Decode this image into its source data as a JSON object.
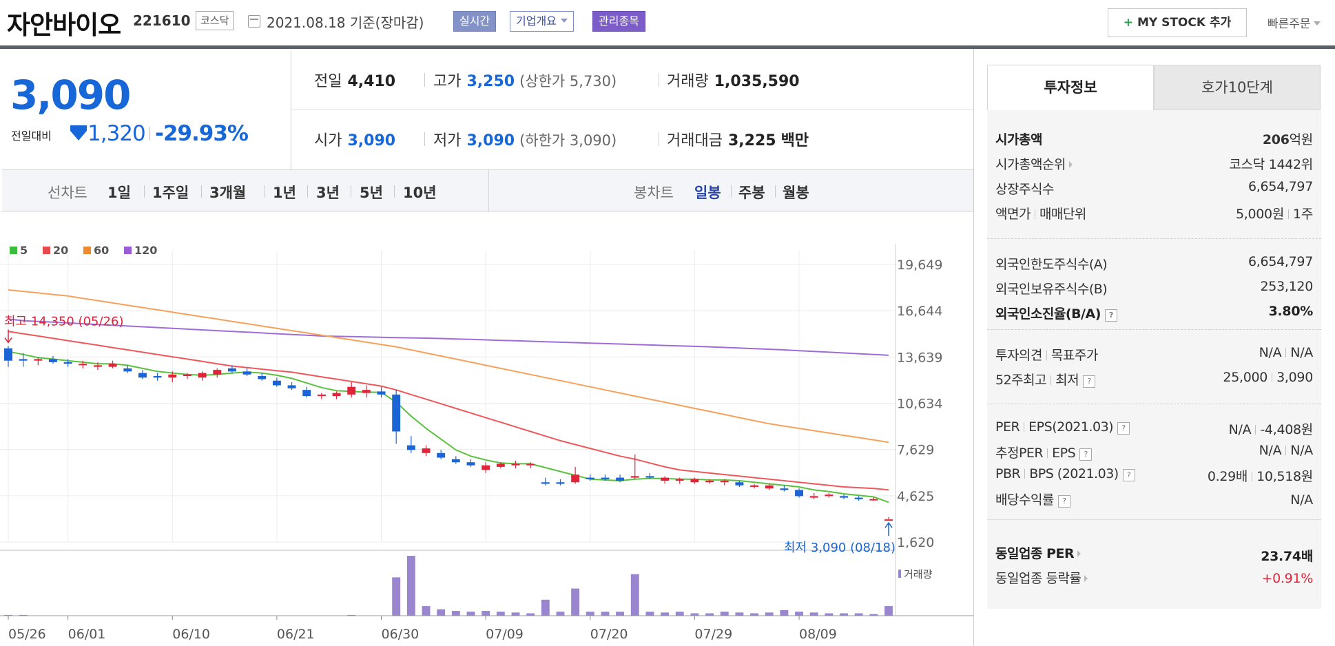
{
  "header": {
    "name": "자안바이오",
    "code": "221610",
    "market": "코스닥",
    "date": "2021.08.18 기준(장마감)",
    "badge_realtime": "실시간",
    "badge_company": "기업개요",
    "badge_managed": "관리종목",
    "mystock": "MY STOCK 추가",
    "mystock_plus": "+",
    "quick_order": "빠른주문"
  },
  "price": {
    "current": "3,090",
    "change_label": "전일대비",
    "change": "1,320",
    "change_pct": "-29.93%"
  },
  "quote_grid": {
    "prev_close": {
      "label": "전일",
      "value": "4,410"
    },
    "high": {
      "label": "고가",
      "value": "3,250",
      "limit": "(상한가 5,730)"
    },
    "volume": {
      "label": "거래량",
      "value": "1,035,590"
    },
    "open": {
      "label": "시가",
      "value": "3,090"
    },
    "low": {
      "label": "저가",
      "value": "3,090",
      "limit": "(하한가 3,090)"
    },
    "amount": {
      "label": "거래대금",
      "value": "3,225",
      "unit": "백만"
    }
  },
  "tabs": {
    "line_label": "선차트",
    "line_items": [
      "1일",
      "1주일",
      "3개월",
      "1년",
      "3년",
      "5년",
      "10년"
    ],
    "candle_label": "봉차트",
    "candle_items": [
      "일봉",
      "주봉",
      "월봉"
    ],
    "selected_candle": "일봉"
  },
  "colors": {
    "up": "#e0253a",
    "down": "#1a64d6",
    "ma5": "#59c23d",
    "ma20": "#f0575b",
    "ma60": "#f7a15a",
    "ma120": "#9d6cd6",
    "volume": "#9a86cf"
  },
  "chart_data": {
    "type": "candlestick",
    "title": "",
    "legend": [
      {
        "label": "5",
        "color": "#3bbd3b"
      },
      {
        "label": "20",
        "color": "#e8494f"
      },
      {
        "label": "60",
        "color": "#f08a2e"
      },
      {
        "label": "120",
        "color": "#9a5cd6"
      }
    ],
    "y_ticks": [
      1620,
      4625,
      7629,
      10634,
      13639,
      16644,
      19649
    ],
    "y_tick_labels": [
      "1,620",
      "4,625",
      "7,629",
      "10,634",
      "13,639",
      "16,644",
      "19,649"
    ],
    "ylim": [
      1620,
      19649
    ],
    "x_ticks": [
      {
        "label": "05/26",
        "index": 0
      },
      {
        "label": "06/01",
        "index": 4
      },
      {
        "label": "06/10",
        "index": 11
      },
      {
        "label": "06/21",
        "index": 18
      },
      {
        "label": "06/30",
        "index": 25
      },
      {
        "label": "07/09",
        "index": 32
      },
      {
        "label": "07/20",
        "index": 39
      },
      {
        "label": "07/29",
        "index": 46
      },
      {
        "label": "08/09",
        "index": 53
      }
    ],
    "annotations": {
      "high": "최고 14,350 (05/26)",
      "high_index": 0,
      "high_value": 14350,
      "low": "최저 3,090 (08/18)",
      "low_index": 59,
      "low_value": 3090
    },
    "volume_label": "거래량",
    "candles": [
      {
        "o": 14200,
        "h": 14350,
        "l": 13000,
        "c": 13400
      },
      {
        "o": 13500,
        "h": 13900,
        "l": 13000,
        "c": 13400
      },
      {
        "o": 13400,
        "h": 13600,
        "l": 13100,
        "c": 13500
      },
      {
        "o": 13500,
        "h": 13700,
        "l": 13200,
        "c": 13300
      },
      {
        "o": 13300,
        "h": 13500,
        "l": 13000,
        "c": 13200
      },
      {
        "o": 13100,
        "h": 13400,
        "l": 12900,
        "c": 13200
      },
      {
        "o": 13000,
        "h": 13300,
        "l": 12800,
        "c": 13100
      },
      {
        "o": 13000,
        "h": 13400,
        "l": 12900,
        "c": 13200
      },
      {
        "o": 12900,
        "h": 13100,
        "l": 12600,
        "c": 12700
      },
      {
        "o": 12600,
        "h": 12800,
        "l": 12200,
        "c": 12300
      },
      {
        "o": 12400,
        "h": 12600,
        "l": 12100,
        "c": 12300
      },
      {
        "o": 12300,
        "h": 12700,
        "l": 12000,
        "c": 12500
      },
      {
        "o": 12400,
        "h": 12600,
        "l": 12200,
        "c": 12500
      },
      {
        "o": 12300,
        "h": 12700,
        "l": 12100,
        "c": 12600
      },
      {
        "o": 12500,
        "h": 12900,
        "l": 12300,
        "c": 12800
      },
      {
        "o": 12900,
        "h": 13100,
        "l": 12600,
        "c": 12700
      },
      {
        "o": 12700,
        "h": 12900,
        "l": 12400,
        "c": 12500
      },
      {
        "o": 12400,
        "h": 12600,
        "l": 12100,
        "c": 12200
      },
      {
        "o": 12100,
        "h": 12300,
        "l": 11700,
        "c": 11800
      },
      {
        "o": 11800,
        "h": 12000,
        "l": 11500,
        "c": 11600
      },
      {
        "o": 11500,
        "h": 11700,
        "l": 11000,
        "c": 11100
      },
      {
        "o": 11100,
        "h": 11300,
        "l": 10900,
        "c": 11200
      },
      {
        "o": 11100,
        "h": 11400,
        "l": 10900,
        "c": 11300
      },
      {
        "o": 11200,
        "h": 12000,
        "l": 11000,
        "c": 11700
      },
      {
        "o": 11300,
        "h": 11800,
        "l": 11000,
        "c": 11500
      },
      {
        "o": 11400,
        "h": 11700,
        "l": 11000,
        "c": 11200
      },
      {
        "o": 11200,
        "h": 11500,
        "l": 8000,
        "c": 8800
      },
      {
        "o": 7900,
        "h": 8500,
        "l": 7400,
        "c": 7600
      },
      {
        "o": 7400,
        "h": 7900,
        "l": 7200,
        "c": 7700
      },
      {
        "o": 7400,
        "h": 7600,
        "l": 7000,
        "c": 7100
      },
      {
        "o": 7000,
        "h": 7200,
        "l": 6700,
        "c": 6800
      },
      {
        "o": 6800,
        "h": 7000,
        "l": 6500,
        "c": 6600
      },
      {
        "o": 6300,
        "h": 6800,
        "l": 6100,
        "c": 6600
      },
      {
        "o": 6500,
        "h": 6800,
        "l": 6400,
        "c": 6700
      },
      {
        "o": 6600,
        "h": 6900,
        "l": 6400,
        "c": 6700
      },
      {
        "o": 6600,
        "h": 6800,
        "l": 6400,
        "c": 6700
      },
      {
        "o": 5500,
        "h": 5800,
        "l": 5300,
        "c": 5400
      },
      {
        "o": 5500,
        "h": 5700,
        "l": 5300,
        "c": 5400
      },
      {
        "o": 5500,
        "h": 6500,
        "l": 5400,
        "c": 6000
      },
      {
        "o": 5800,
        "h": 6000,
        "l": 5600,
        "c": 5700
      },
      {
        "o": 5800,
        "h": 6000,
        "l": 5600,
        "c": 5700
      },
      {
        "o": 5800,
        "h": 6000,
        "l": 5500,
        "c": 5600
      },
      {
        "o": 5800,
        "h": 7300,
        "l": 5700,
        "c": 5900
      },
      {
        "o": 5900,
        "h": 6100,
        "l": 5700,
        "c": 5800
      },
      {
        "o": 5600,
        "h": 5900,
        "l": 5400,
        "c": 5800
      },
      {
        "o": 5600,
        "h": 5800,
        "l": 5400,
        "c": 5700
      },
      {
        "o": 5500,
        "h": 5800,
        "l": 5400,
        "c": 5700
      },
      {
        "o": 5500,
        "h": 5700,
        "l": 5400,
        "c": 5600
      },
      {
        "o": 5500,
        "h": 5700,
        "l": 5300,
        "c": 5600
      },
      {
        "o": 5500,
        "h": 5600,
        "l": 5200,
        "c": 5300
      },
      {
        "o": 5200,
        "h": 5400,
        "l": 5100,
        "c": 5300
      },
      {
        "o": 5100,
        "h": 5400,
        "l": 5000,
        "c": 5300
      },
      {
        "o": 5100,
        "h": 5300,
        "l": 4900,
        "c": 5000
      },
      {
        "o": 5000,
        "h": 5100,
        "l": 4500,
        "c": 4600
      },
      {
        "o": 4500,
        "h": 4800,
        "l": 4400,
        "c": 4600
      },
      {
        "o": 4600,
        "h": 4800,
        "l": 4500,
        "c": 4700
      },
      {
        "o": 4600,
        "h": 4700,
        "l": 4400,
        "c": 4500
      },
      {
        "o": 4500,
        "h": 4600,
        "l": 4300,
        "c": 4400
      },
      {
        "o": 4400,
        "h": 4500,
        "l": 4300,
        "c": 4410
      },
      {
        "o": 3090,
        "h": 3250,
        "l": 3090,
        "c": 3090
      }
    ],
    "ma5": [
      14000,
      13800,
      13600,
      13500,
      13400,
      13300,
      13200,
      13200,
      13100,
      12900,
      12700,
      12600,
      12500,
      12450,
      12500,
      12600,
      12650,
      12600,
      12450,
      12250,
      11950,
      11650,
      11450,
      11400,
      11350,
      11350,
      10700,
      9800,
      9000,
      8300,
      7600,
      7200,
      6950,
      6750,
      6700,
      6700,
      6450,
      6200,
      5950,
      5700,
      5650,
      5600,
      5700,
      5750,
      5750,
      5700,
      5700,
      5650,
      5650,
      5600,
      5500,
      5400,
      5300,
      5200,
      5000,
      4900,
      4750,
      4650,
      4550,
      4200
    ],
    "ma20": [
      15300,
      15150,
      15000,
      14850,
      14700,
      14550,
      14400,
      14250,
      14100,
      13950,
      13800,
      13650,
      13500,
      13350,
      13200,
      13050,
      12950,
      12850,
      12750,
      12650,
      12500,
      12350,
      12200,
      12050,
      11900,
      11750,
      11500,
      11200,
      10900,
      10600,
      10300,
      10000,
      9700,
      9400,
      9100,
      8800,
      8500,
      8200,
      7950,
      7700,
      7450,
      7200,
      7000,
      6750,
      6500,
      6300,
      6200,
      6100,
      6000,
      5900,
      5800,
      5700,
      5600,
      5500,
      5400,
      5300,
      5200,
      5150,
      5100,
      5000
    ],
    "ma60": [
      18000,
      17900,
      17800,
      17700,
      17600,
      17450,
      17300,
      17150,
      17000,
      16850,
      16700,
      16550,
      16400,
      16250,
      16100,
      15950,
      15800,
      15650,
      15500,
      15350,
      15200,
      15050,
      14900,
      14750,
      14600,
      14450,
      14300,
      14100,
      13900,
      13700,
      13500,
      13300,
      13100,
      12900,
      12700,
      12500,
      12300,
      12100,
      11900,
      11700,
      11500,
      11300,
      11100,
      10900,
      10700,
      10500,
      10300,
      10100,
      9900,
      9700,
      9500,
      9300,
      9150,
      9000,
      8850,
      8700,
      8550,
      8400,
      8250,
      8100
    ],
    "ma120": [
      16100,
      16000,
      15950,
      15900,
      15850,
      15800,
      15750,
      15700,
      15650,
      15600,
      15550,
      15500,
      15450,
      15400,
      15350,
      15300,
      15250,
      15200,
      15150,
      15100,
      15050,
      15000,
      14980,
      14960,
      14940,
      14920,
      14900,
      14880,
      14860,
      14840,
      14810,
      14780,
      14750,
      14720,
      14690,
      14660,
      14630,
      14600,
      14570,
      14540,
      14510,
      14480,
      14450,
      14420,
      14390,
      14360,
      14330,
      14300,
      14260,
      14220,
      14180,
      14140,
      14100,
      14050,
      14000,
      13950,
      13900,
      13850,
      13800,
      13750
    ],
    "volume": [
      1,
      1,
      0,
      0,
      0,
      0,
      0,
      0,
      0,
      0,
      0,
      0,
      0,
      0,
      0,
      0,
      0,
      0,
      0,
      0,
      0,
      0,
      0,
      1,
      0,
      0,
      48,
      75,
      12,
      8,
      6,
      5,
      6,
      5,
      4,
      3,
      20,
      5,
      34,
      5,
      5,
      5,
      52,
      5,
      4,
      5,
      3,
      3,
      5,
      4,
      3,
      4,
      7,
      5,
      4,
      3,
      3,
      3,
      2,
      12
    ]
  },
  "right_panel": {
    "tab_active": "투자정보",
    "tab_other": "호가10단계",
    "market_cap_label": "시가총액",
    "market_cap_num": "206",
    "market_cap_unit": "억원",
    "cap_rank_label": "시가총액순위",
    "cap_rank": "코스닥 1442위",
    "shares_label": "상장주식수",
    "shares": "6,654,797",
    "face_label": "액면가",
    "trade_unit_label": "매매단위",
    "face": "5,000원",
    "trade_unit": "1주",
    "foreign_limit_label": "외국인한도주식수(A)",
    "foreign_limit": "6,654,797",
    "foreign_hold_label": "외국인보유주식수(B)",
    "foreign_hold": "253,120",
    "foreign_ratio_label": "외국인소진율(B/A)",
    "foreign_ratio": "3.80%",
    "opinion_label": "투자의견",
    "target_label": "목표주가",
    "opinion": "N/A",
    "target": "N/A",
    "w52_label": "52주최고",
    "w52_low_label": "최저",
    "w52_high": "25,000",
    "w52_low": "3,090",
    "per_label": "PER",
    "eps_label": "EPS(2021.03)",
    "per": "N/A",
    "eps": "-4,408원",
    "est_per_label": "추정PER",
    "est_eps_label": "EPS",
    "est_per": "N/A",
    "est_eps": "N/A",
    "pbr_label": "PBR",
    "bps_label": "BPS (2021.03)",
    "pbr": "0.29배",
    "bps": "10,518원",
    "div_label": "배당수익률",
    "div": "N/A",
    "sector_per_label": "동일업종 PER",
    "sector_per": "23.74배",
    "sector_chg_label": "동일업종 등락률",
    "sector_chg": "+0.91%"
  }
}
